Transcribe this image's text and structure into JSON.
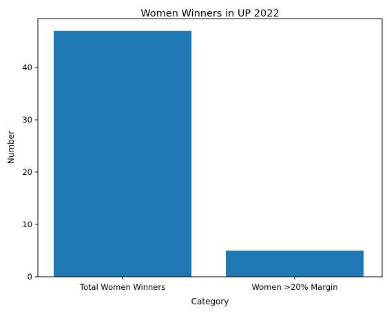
{
  "chart_data": {
    "type": "bar",
    "title": "Women Winners in UP 2022",
    "xlabel": "Category",
    "ylabel": "Number",
    "categories": [
      "Total Women Winners",
      "Women >20% Margin"
    ],
    "values": [
      47,
      5
    ],
    "ylim": [
      0,
      49.35
    ],
    "yticks": [
      0,
      10,
      20,
      30,
      40
    ],
    "bar_color": "#1f77b4",
    "grid": false,
    "legend": "none"
  }
}
